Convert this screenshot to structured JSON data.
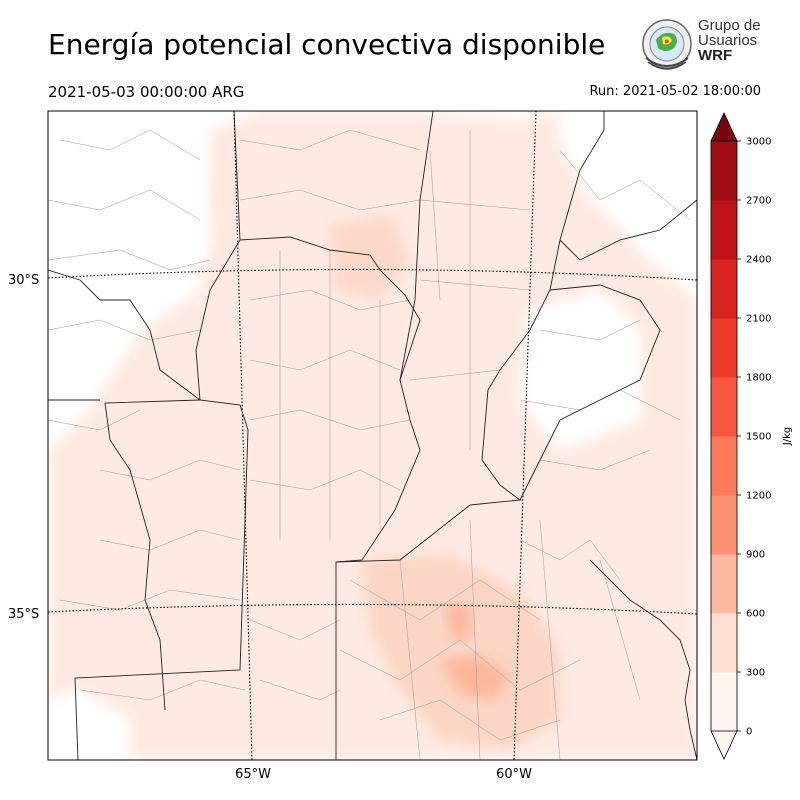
{
  "title": "Energía potencial convectiva disponible",
  "valid_time": "2021-05-03 00:00:00 ARG",
  "run_time": "Run: 2021-05-02 18:00:00",
  "logo": {
    "line1": "Grupo de",
    "line2": "Usuarios",
    "line3": "WRF"
  },
  "map": {
    "lat_labels": [
      "30°S",
      "35°S"
    ],
    "lon_labels": [
      "65°W",
      "60°W"
    ]
  },
  "colorbar": {
    "label": "J/kg",
    "ticks": [
      "0",
      "300",
      "600",
      "900",
      "1200",
      "1500",
      "1800",
      "2100",
      "2400",
      "2700",
      "3000"
    ],
    "colors": [
      "#fff5f0",
      "#fee0d2",
      "#fcbba1",
      "#fc9272",
      "#fb7a5a",
      "#f7573f",
      "#ef3b2c",
      "#d9231f",
      "#bd1519",
      "#a00d14",
      "#7a0510"
    ]
  }
}
